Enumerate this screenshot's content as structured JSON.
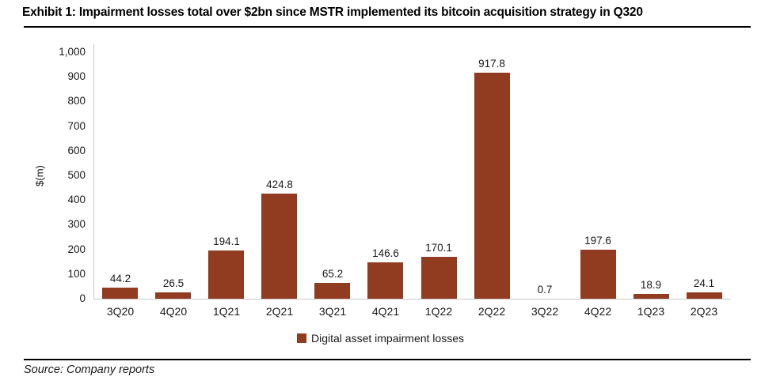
{
  "page": {
    "title": "Exhibit 1: Impairment losses total over $2bn since MSTR implemented its bitcoin acquisition strategy in Q320",
    "source": "Source: Company reports"
  },
  "chart_data": {
    "type": "bar",
    "title": "Exhibit 1: Impairment losses total over $2bn since MSTR implemented its bitcoin acquisition strategy in Q320",
    "categories": [
      "3Q20",
      "4Q20",
      "1Q21",
      "2Q21",
      "3Q21",
      "4Q21",
      "1Q22",
      "2Q22",
      "3Q22",
      "4Q22",
      "1Q23",
      "2Q23"
    ],
    "values": [
      44.2,
      26.5,
      194.1,
      424.8,
      65.2,
      146.6,
      170.1,
      917.8,
      0.7,
      197.6,
      18.9,
      24.1
    ],
    "series_name": "Digital asset impairment losses",
    "xlabel": "",
    "ylabel": "$(m)",
    "ylim": [
      0,
      1000
    ],
    "ytick_step": 100,
    "grid": false,
    "value_labels": true,
    "legend_position": "bottom",
    "colors": {
      "bar": "#913B21",
      "axis": "#c9c9c9",
      "text": "#1a1a1a"
    }
  }
}
